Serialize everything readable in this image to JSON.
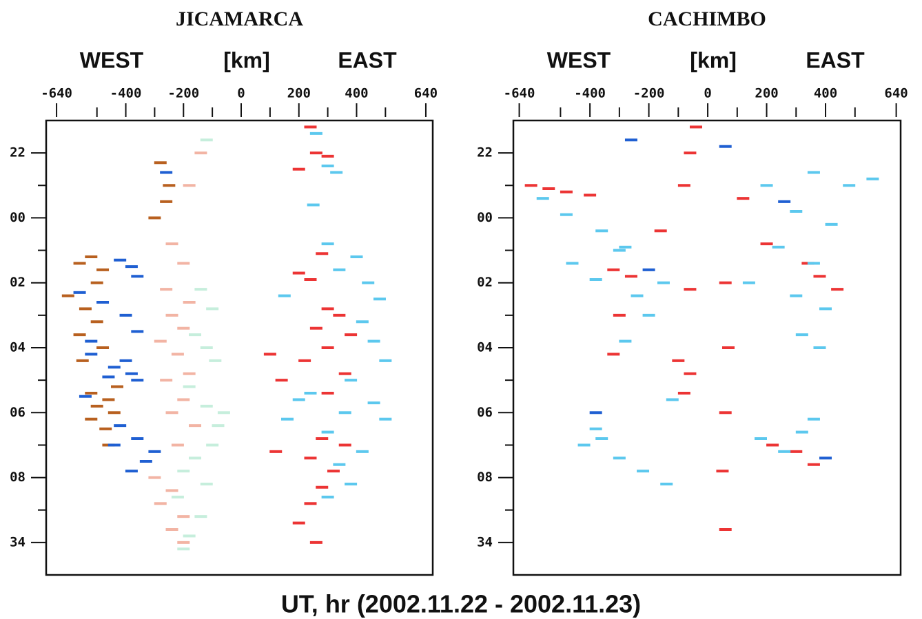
{
  "figure_label": "UT, hr (2002.11.22 - 2002.11.23)",
  "chart_data": [
    {
      "type": "scatter",
      "title": "JICAMARCA",
      "west_label": "WEST",
      "unit_label": "[km]",
      "east_label": "EAST",
      "xlim": [
        -676,
        664
      ],
      "xticks": [
        -640,
        -400,
        -200,
        0,
        200,
        400,
        640
      ],
      "xminorticks": [
        -500,
        -300,
        -100,
        100,
        300,
        500
      ],
      "ylim": [
        21,
        35
      ],
      "y_reversed": true,
      "yticks": [
        22,
        {
          "value": 24,
          "label": "00"
        },
        {
          "value": 26,
          "label": "02"
        },
        {
          "value": 28,
          "label": "04"
        },
        {
          "value": 30,
          "label": "06"
        },
        {
          "value": 32,
          "label": "08"
        },
        34
      ],
      "yminorticks": [
        23,
        25,
        27,
        29,
        31,
        33
      ],
      "series": [
        {
          "color": "#b8601f",
          "x": [
            -520,
            -560,
            -480,
            -600,
            -540,
            -500,
            -560,
            -480,
            -520,
            -460,
            -500,
            -440,
            -520,
            -470,
            -280,
            -260,
            -300,
            -250,
            -500,
            -430,
            -550,
            -460
          ],
          "y": [
            25.2,
            25.4,
            25.6,
            26.4,
            26.8,
            27.2,
            27.6,
            28.0,
            29.4,
            29.6,
            29.8,
            30.0,
            30.2,
            30.5,
            22.3,
            23.5,
            24.0,
            23.0,
            26.0,
            29.2,
            28.4,
            31.0
          ]
        },
        {
          "color": "#1f5fd2",
          "x": [
            -380,
            -360,
            -420,
            -560,
            -480,
            -400,
            -360,
            -520,
            -400,
            -380,
            -440,
            -360,
            -540,
            -420,
            -360,
            -300,
            -440,
            -330,
            -380,
            -260,
            -520,
            -460
          ],
          "y": [
            25.5,
            25.8,
            25.3,
            26.3,
            26.6,
            27.0,
            27.5,
            28.2,
            28.4,
            28.8,
            28.6,
            29.0,
            29.5,
            30.4,
            30.8,
            31.2,
            31.0,
            31.5,
            31.8,
            22.6,
            27.8,
            28.9
          ]
        },
        {
          "color": "#f2b4a4",
          "x": [
            -240,
            -200,
            -260,
            -180,
            -240,
            -200,
            -280,
            -220,
            -180,
            -260,
            -200,
            -240,
            -160,
            -220,
            -300,
            -240,
            -280,
            -200,
            -240,
            -180,
            -140,
            -200
          ],
          "y": [
            24.8,
            25.4,
            26.2,
            26.6,
            27.0,
            27.4,
            27.8,
            28.2,
            28.8,
            29.0,
            29.6,
            30.0,
            30.4,
            31.0,
            32.0,
            32.4,
            32.8,
            33.2,
            33.6,
            23.0,
            22.0,
            34.0
          ]
        },
        {
          "color": "#c6eedc",
          "x": [
            -140,
            -100,
            -160,
            -120,
            -90,
            -180,
            -120,
            -80,
            -160,
            -200,
            -120,
            -220,
            -140,
            -180,
            -200,
            -120,
            -60,
            -100
          ],
          "y": [
            26.2,
            26.8,
            27.6,
            28.0,
            28.4,
            29.2,
            29.8,
            30.4,
            31.4,
            31.8,
            32.2,
            32.6,
            33.2,
            33.8,
            34.2,
            21.6,
            30.0,
            31.0
          ]
        },
        {
          "color": "#ec3434",
          "x": [
            240,
            260,
            300,
            200,
            280,
            200,
            240,
            300,
            340,
            260,
            380,
            300,
            220,
            360,
            300,
            140,
            280,
            360,
            240,
            320,
            280,
            240,
            200,
            260,
            100,
            120
          ],
          "y": [
            21.2,
            22.0,
            22.1,
            22.5,
            25.1,
            25.7,
            25.9,
            26.8,
            27.0,
            27.4,
            27.6,
            28.0,
            28.4,
            28.8,
            29.4,
            29.0,
            30.8,
            31.0,
            31.4,
            31.8,
            32.3,
            32.8,
            33.4,
            34.0,
            28.2,
            31.2
          ]
        },
        {
          "color": "#5cc8ee",
          "x": [
            260,
            300,
            330,
            250,
            300,
            400,
            340,
            440,
            480,
            420,
            460,
            500,
            380,
            240,
            460,
            360,
            500,
            300,
            420,
            340,
            380,
            300,
            150,
            200,
            160
          ],
          "y": [
            21.4,
            22.4,
            22.6,
            23.6,
            24.8,
            25.2,
            25.6,
            26.0,
            26.5,
            27.2,
            27.8,
            28.4,
            29.0,
            29.4,
            29.7,
            30.0,
            30.2,
            30.6,
            31.2,
            31.6,
            32.2,
            32.6,
            26.4,
            29.6,
            30.2
          ]
        }
      ]
    },
    {
      "type": "scatter",
      "title": "CACHIMBO",
      "west_label": "WEST",
      "unit_label": "[km]",
      "east_label": "EAST",
      "xlim": [
        -660,
        655
      ],
      "xticks": [
        -640,
        -400,
        -200,
        0,
        200,
        400,
        640
      ],
      "xminorticks": [
        -500,
        -300,
        -100,
        100,
        300,
        500
      ],
      "ylim": [
        21,
        35
      ],
      "y_reversed": true,
      "yticks": [
        22,
        {
          "value": 24,
          "label": "00"
        },
        {
          "value": 26,
          "label": "02"
        },
        {
          "value": 28,
          "label": "04"
        },
        {
          "value": 30,
          "label": "06"
        },
        {
          "value": 32,
          "label": "08"
        },
        34
      ],
      "yminorticks": [
        23,
        25,
        27,
        29,
        31,
        33
      ],
      "series": [
        {
          "color": "#ec3434",
          "x": [
            -40,
            -60,
            -80,
            -600,
            -540,
            -480,
            -400,
            -160,
            -320,
            -260,
            -60,
            -300,
            -320,
            -100,
            -60,
            -80,
            60,
            70,
            60,
            50,
            120,
            200,
            340,
            380,
            440,
            300,
            360,
            220,
            60
          ],
          "y": [
            21.2,
            22.0,
            23.0,
            23.0,
            23.1,
            23.2,
            23.3,
            24.4,
            25.6,
            25.8,
            26.2,
            27.0,
            28.2,
            28.4,
            28.8,
            29.4,
            26.0,
            28.0,
            30.0,
            31.8,
            23.4,
            24.8,
            25.4,
            25.8,
            26.2,
            31.2,
            31.6,
            31.0,
            33.6
          ]
        },
        {
          "color": "#5cc8ee",
          "x": [
            -560,
            -480,
            -360,
            -280,
            -460,
            -380,
            -240,
            -300,
            -150,
            -200,
            -280,
            -120,
            -380,
            -420,
            -300,
            -220,
            -140,
            -360,
            200,
            360,
            480,
            560,
            300,
            420,
            240,
            360,
            140,
            300,
            400,
            320,
            380,
            360,
            180,
            320,
            260
          ],
          "y": [
            23.4,
            23.9,
            24.4,
            24.9,
            25.4,
            25.9,
            26.4,
            25.0,
            26.0,
            27.0,
            27.8,
            29.6,
            30.5,
            31.0,
            31.4,
            31.8,
            32.2,
            30.8,
            23.0,
            22.6,
            23.0,
            22.8,
            23.8,
            24.2,
            24.9,
            25.4,
            26.0,
            26.4,
            26.8,
            27.6,
            28.0,
            30.2,
            30.8,
            30.6,
            31.2
          ]
        },
        {
          "color": "#1f5fd2",
          "x": [
            -260,
            -380,
            260,
            400,
            -200,
            60
          ],
          "y": [
            21.6,
            30.0,
            23.5,
            31.4,
            25.6,
            21.8
          ]
        }
      ]
    }
  ]
}
